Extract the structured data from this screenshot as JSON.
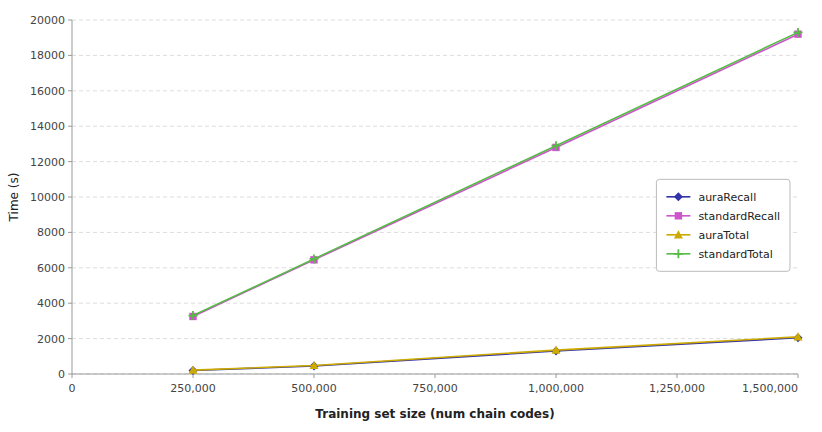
{
  "chart_data": {
    "type": "line",
    "xlabel": "Training set size (num chain codes)",
    "ylabel": "Time (s)",
    "x": [
      250000,
      500000,
      1000000,
      1500000
    ],
    "series": [
      {
        "name": "auraRecall",
        "color": "#3333aa",
        "marker": "diamond",
        "values": [
          200,
          450,
          1300,
          2050
        ]
      },
      {
        "name": "standardRecall",
        "color": "#cc55cc",
        "marker": "square",
        "values": [
          3250,
          6450,
          12800,
          19200
        ]
      },
      {
        "name": "auraTotal",
        "color": "#ccaa00",
        "marker": "triangle",
        "values": [
          220,
          480,
          1350,
          2100
        ]
      },
      {
        "name": "standardTotal",
        "color": "#55bb44",
        "marker": "plus",
        "values": [
          3300,
          6500,
          12900,
          19300
        ]
      }
    ],
    "xlim": [
      0,
      1500000
    ],
    "ylim": [
      0,
      20000
    ],
    "xticks": [
      0,
      {
        "value": 250000,
        "label": "250,000"
      },
      {
        "value": 500000,
        "label": "500,000"
      },
      {
        "value": 750000,
        "label": "750,000"
      },
      {
        "value": 1000000,
        "label": "1,000,000"
      },
      {
        "value": 1250000,
        "label": "1,250,000"
      },
      {
        "value": 1500000,
        "label": "1,500,000"
      }
    ],
    "yticks": [
      0,
      2000,
      4000,
      6000,
      8000,
      10000,
      12000,
      14000,
      16000,
      18000,
      20000
    ],
    "grid": "y",
    "legend": "right"
  }
}
